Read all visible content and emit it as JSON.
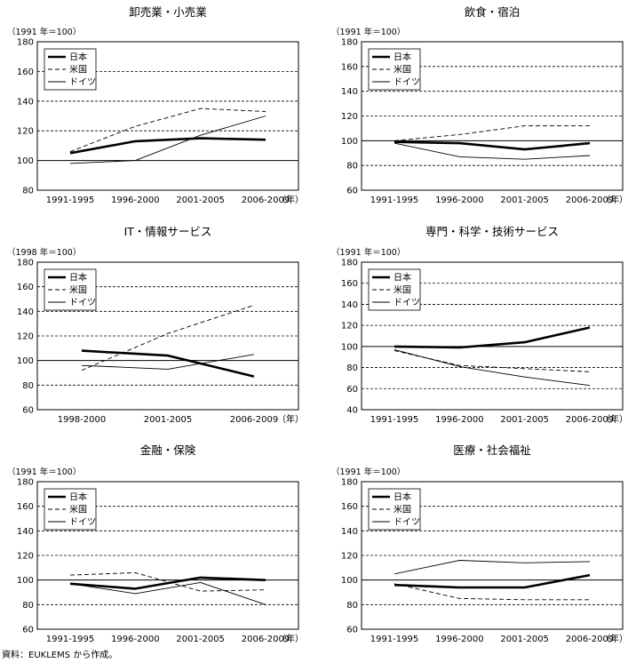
{
  "legend_labels": {
    "jp": "日本",
    "us": "米国",
    "de": "ドイツ"
  },
  "year_unit": "（年）",
  "source": "資料：EUKLEMS から作成。",
  "chart_data": [
    {
      "type": "line",
      "title": "卸売業・小売業",
      "base_label": "（1991 年＝100）",
      "categories": [
        "1991-1995",
        "1996-2000",
        "2001-2005",
        "2006-2009"
      ],
      "ylim": [
        80,
        180
      ],
      "yticks": [
        80,
        100,
        120,
        140,
        160,
        180
      ],
      "series": [
        {
          "name": "日本",
          "key": "jp",
          "values": [
            105,
            113,
            115,
            114
          ]
        },
        {
          "name": "米国",
          "key": "us",
          "values": [
            106,
            123,
            135,
            133
          ]
        },
        {
          "name": "ドイツ",
          "key": "de",
          "values": [
            98,
            100,
            117,
            130
          ]
        }
      ]
    },
    {
      "type": "line",
      "title": "飲食・宿泊",
      "base_label": "（1991 年＝100）",
      "categories": [
        "1991-1995",
        "1996-2000",
        "2001-2005",
        "2006-2009"
      ],
      "ylim": [
        60,
        180
      ],
      "yticks": [
        60,
        80,
        100,
        120,
        140,
        160,
        180
      ],
      "series": [
        {
          "name": "日本",
          "key": "jp",
          "values": [
            99,
            98,
            93,
            98
          ]
        },
        {
          "name": "米国",
          "key": "us",
          "values": [
            100,
            105,
            112,
            112
          ]
        },
        {
          "name": "ドイツ",
          "key": "de",
          "values": [
            98,
            87,
            85,
            88
          ]
        }
      ]
    },
    {
      "type": "line",
      "title": "IT・情報サービス",
      "base_label": "（1998 年＝100）",
      "categories": [
        "1998-2000",
        "2001-2005",
        "2006-2009"
      ],
      "ylim": [
        60,
        180
      ],
      "yticks": [
        60,
        80,
        100,
        120,
        140,
        160,
        180
      ],
      "series": [
        {
          "name": "日本",
          "key": "jp",
          "values": [
            108,
            104,
            87
          ]
        },
        {
          "name": "米国",
          "key": "us",
          "values": [
            92,
            122,
            145
          ]
        },
        {
          "name": "ドイツ",
          "key": "de",
          "values": [
            96,
            93,
            105
          ]
        }
      ]
    },
    {
      "type": "line",
      "title": "専門・科学・技術サービス",
      "base_label": "（1991 年＝100）",
      "categories": [
        "1991-1995",
        "1996-2000",
        "2001-2005",
        "2006-2009"
      ],
      "ylim": [
        40,
        180
      ],
      "yticks": [
        40,
        60,
        80,
        100,
        120,
        140,
        160,
        180
      ],
      "series": [
        {
          "name": "日本",
          "key": "jp",
          "values": [
            100,
            99,
            104,
            118
          ]
        },
        {
          "name": "米国",
          "key": "us",
          "values": [
            96,
            82,
            79,
            76
          ]
        },
        {
          "name": "ドイツ",
          "key": "de",
          "values": [
            97,
            81,
            71,
            63
          ]
        }
      ]
    },
    {
      "type": "line",
      "title": "金融・保険",
      "base_label": "（1991 年＝100）",
      "categories": [
        "1991-1995",
        "1996-2000",
        "2001-2005",
        "2006-2009"
      ],
      "ylim": [
        60,
        180
      ],
      "yticks": [
        60,
        80,
        100,
        120,
        140,
        160,
        180
      ],
      "series": [
        {
          "name": "日本",
          "key": "jp",
          "values": [
            97,
            93,
            102,
            100
          ]
        },
        {
          "name": "米国",
          "key": "us",
          "values": [
            104,
            106,
            91,
            92
          ]
        },
        {
          "name": "ドイツ",
          "key": "de",
          "values": [
            97,
            89,
            98,
            80
          ]
        }
      ]
    },
    {
      "type": "line",
      "title": "医療・社会福祉",
      "base_label": "（1991 年＝100）",
      "categories": [
        "1991-1995",
        "1996-2000",
        "2001-2005",
        "2006-2009"
      ],
      "ylim": [
        60,
        180
      ],
      "yticks": [
        60,
        80,
        100,
        120,
        140,
        160,
        180
      ],
      "series": [
        {
          "name": "日本",
          "key": "jp",
          "values": [
            96,
            94,
            94,
            104
          ]
        },
        {
          "name": "米国",
          "key": "us",
          "values": [
            97,
            85,
            84,
            84
          ]
        },
        {
          "name": "ドイツ",
          "key": "de",
          "values": [
            105,
            116,
            114,
            115
          ]
        }
      ]
    }
  ]
}
